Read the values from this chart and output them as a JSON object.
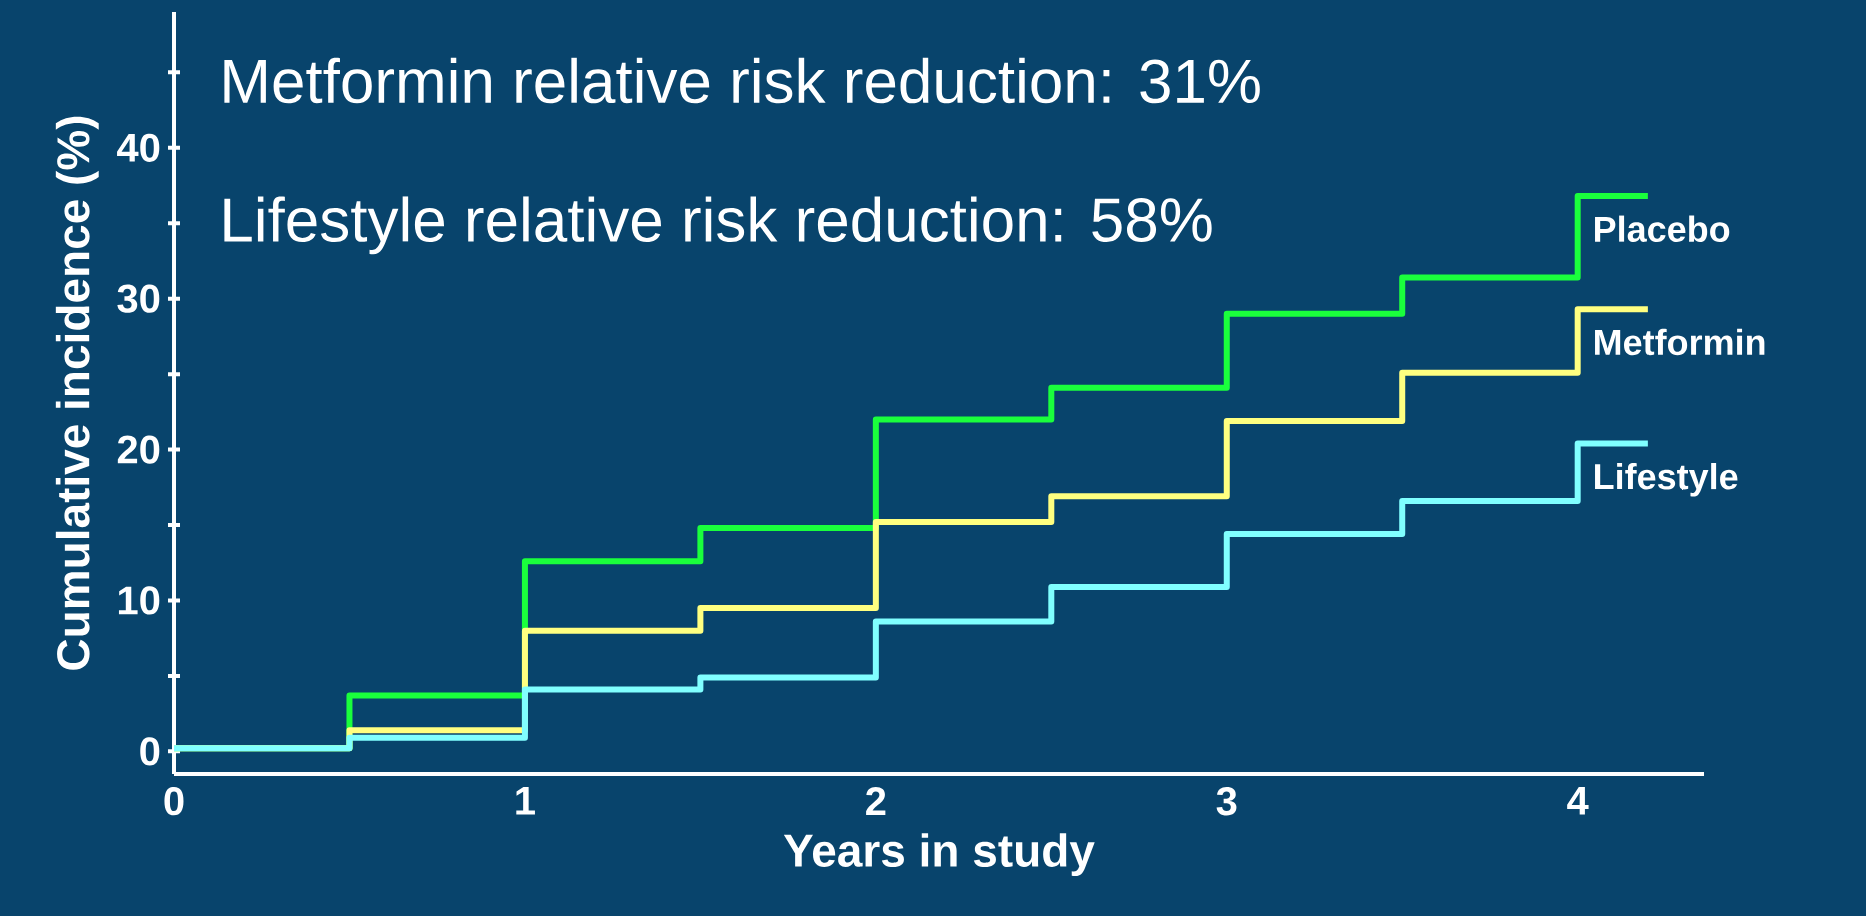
{
  "chart_data": {
    "type": "step",
    "xlabel": "Years in study",
    "ylabel": "Cumulative incidence (%)",
    "annotations": [
      "Metformin relative risk reduction: 31%",
      "Lifestyle relative risk reduction: 58%"
    ],
    "x": [
      0,
      0.5,
      1,
      1.5,
      2,
      2.5,
      3,
      3.5,
      4,
      4.2
    ],
    "series": [
      {
        "name": "Placebo",
        "color": "#1aff3c",
        "values": [
          0.2,
          3.7,
          12.6,
          14.8,
          22.0,
          24.1,
          29.0,
          31.4,
          36.8,
          36.8
        ]
      },
      {
        "name": "Metformin",
        "color": "#ffff80",
        "values": [
          0.2,
          1.4,
          8.0,
          9.5,
          15.2,
          16.9,
          21.9,
          25.1,
          29.3,
          29.3
        ]
      },
      {
        "name": "Lifestyle",
        "color": "#80ffff",
        "values": [
          0.2,
          0.9,
          4.1,
          4.9,
          8.6,
          10.9,
          14.4,
          16.6,
          20.4,
          20.4
        ]
      }
    ],
    "xlim": [
      0,
      4.36
    ],
    "ylim": [
      -1.5,
      49
    ],
    "xticks": [
      0,
      1,
      2,
      3,
      4
    ],
    "yticks": [
      0,
      {
        "value": 5,
        "label": null
      },
      10,
      {
        "value": 15,
        "label": null
      },
      20,
      {
        "value": 25,
        "label": null
      },
      30,
      {
        "value": 35,
        "label": null
      },
      40,
      {
        "value": 45,
        "label": null
      }
    ],
    "grid": false,
    "marker": "none",
    "line_style": "solid"
  }
}
